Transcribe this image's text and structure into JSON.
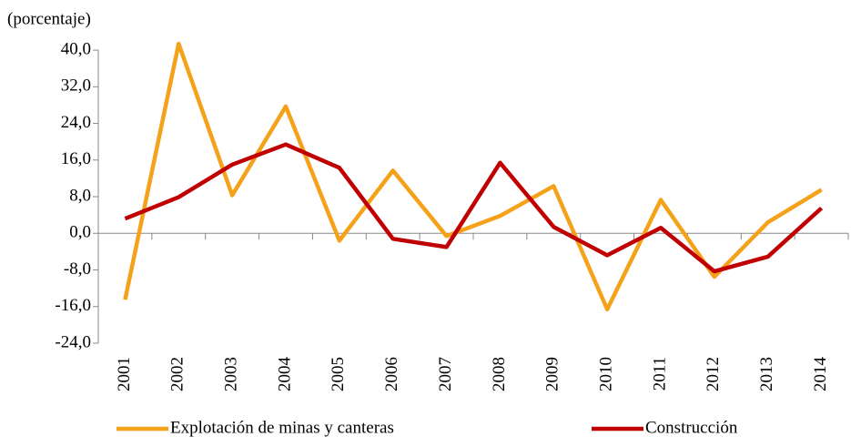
{
  "chart_data": {
    "type": "line",
    "y_label": "(porcentaje)",
    "categories": [
      "2001",
      "2002",
      "2003",
      "2004",
      "2005",
      "2006",
      "2007",
      "2008",
      "2009",
      "2010",
      "2011",
      "2012",
      "2013",
      "2014"
    ],
    "series": [
      {
        "name": "Explotación de minas y canteras",
        "color": "#f5a21b",
        "values": [
          -14.5,
          41.4,
          8.3,
          27.7,
          -1.6,
          13.7,
          -0.6,
          3.8,
          10.3,
          -16.6,
          7.3,
          -9.5,
          2.4,
          9.5
        ]
      },
      {
        "name": "Construcción",
        "color": "#c00000",
        "values": [
          3.2,
          7.9,
          15.0,
          19.4,
          14.3,
          -1.2,
          -3.0,
          15.4,
          1.4,
          -4.8,
          1.2,
          -8.3,
          -5.1,
          5.5
        ]
      }
    ],
    "ylim": [
      -24,
      42
    ],
    "yticks": [
      {
        "value": -24,
        "label": "-24,0"
      },
      {
        "value": -16,
        "label": "-16,0"
      },
      {
        "value": -8,
        "label": "-8,0"
      },
      {
        "value": 0,
        "label": "0,0"
      },
      {
        "value": 8,
        "label": "8,0"
      },
      {
        "value": 16,
        "label": "16,0"
      },
      {
        "value": 24,
        "label": "24,0"
      },
      {
        "value": 32,
        "label": "32,0"
      },
      {
        "value": 40,
        "label": "40,0"
      }
    ]
  }
}
